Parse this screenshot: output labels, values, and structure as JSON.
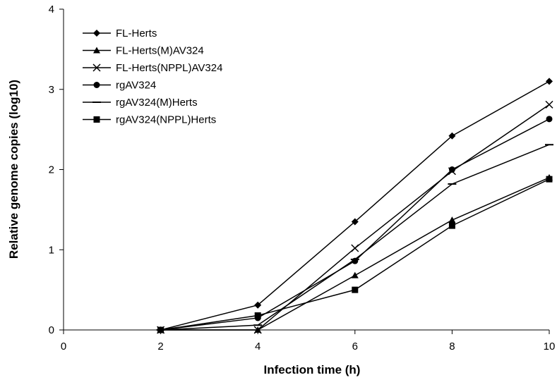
{
  "chart_data": {
    "type": "line",
    "xlabel": "Infection time (h)",
    "ylabel": "Relative genome copies (log10)",
    "xlim": [
      0,
      10
    ],
    "ylim": [
      0,
      4
    ],
    "x_ticks": [
      0,
      2,
      4,
      6,
      8,
      10
    ],
    "y_ticks": [
      0,
      1,
      2,
      3,
      4
    ],
    "grid": false,
    "legend_position": "top-left",
    "x": [
      2,
      4,
      6,
      8,
      10
    ],
    "series": [
      {
        "name": "FL-Herts",
        "marker": "diamond",
        "values": [
          0.0,
          0.31,
          1.35,
          2.42,
          3.1
        ]
      },
      {
        "name": "FL-Herts(M)AV324",
        "marker": "triangle",
        "values": [
          0.0,
          0.0,
          0.68,
          1.37,
          1.9
        ]
      },
      {
        "name": "FL-Herts(NPPL)AV324",
        "marker": "x",
        "values": [
          0.0,
          0.0,
          1.02,
          1.98,
          2.81
        ]
      },
      {
        "name": "rgAV324",
        "marker": "circle",
        "values": [
          0.0,
          0.15,
          0.86,
          2.0,
          2.63
        ]
      },
      {
        "name": "rgAV324(M)Herts",
        "marker": "dash",
        "values": [
          0.0,
          0.06,
          0.88,
          1.82,
          2.31
        ]
      },
      {
        "name": "rgAV324(NPPL)Herts",
        "marker": "square",
        "values": [
          0.0,
          0.18,
          0.5,
          1.3,
          1.88
        ]
      }
    ]
  }
}
